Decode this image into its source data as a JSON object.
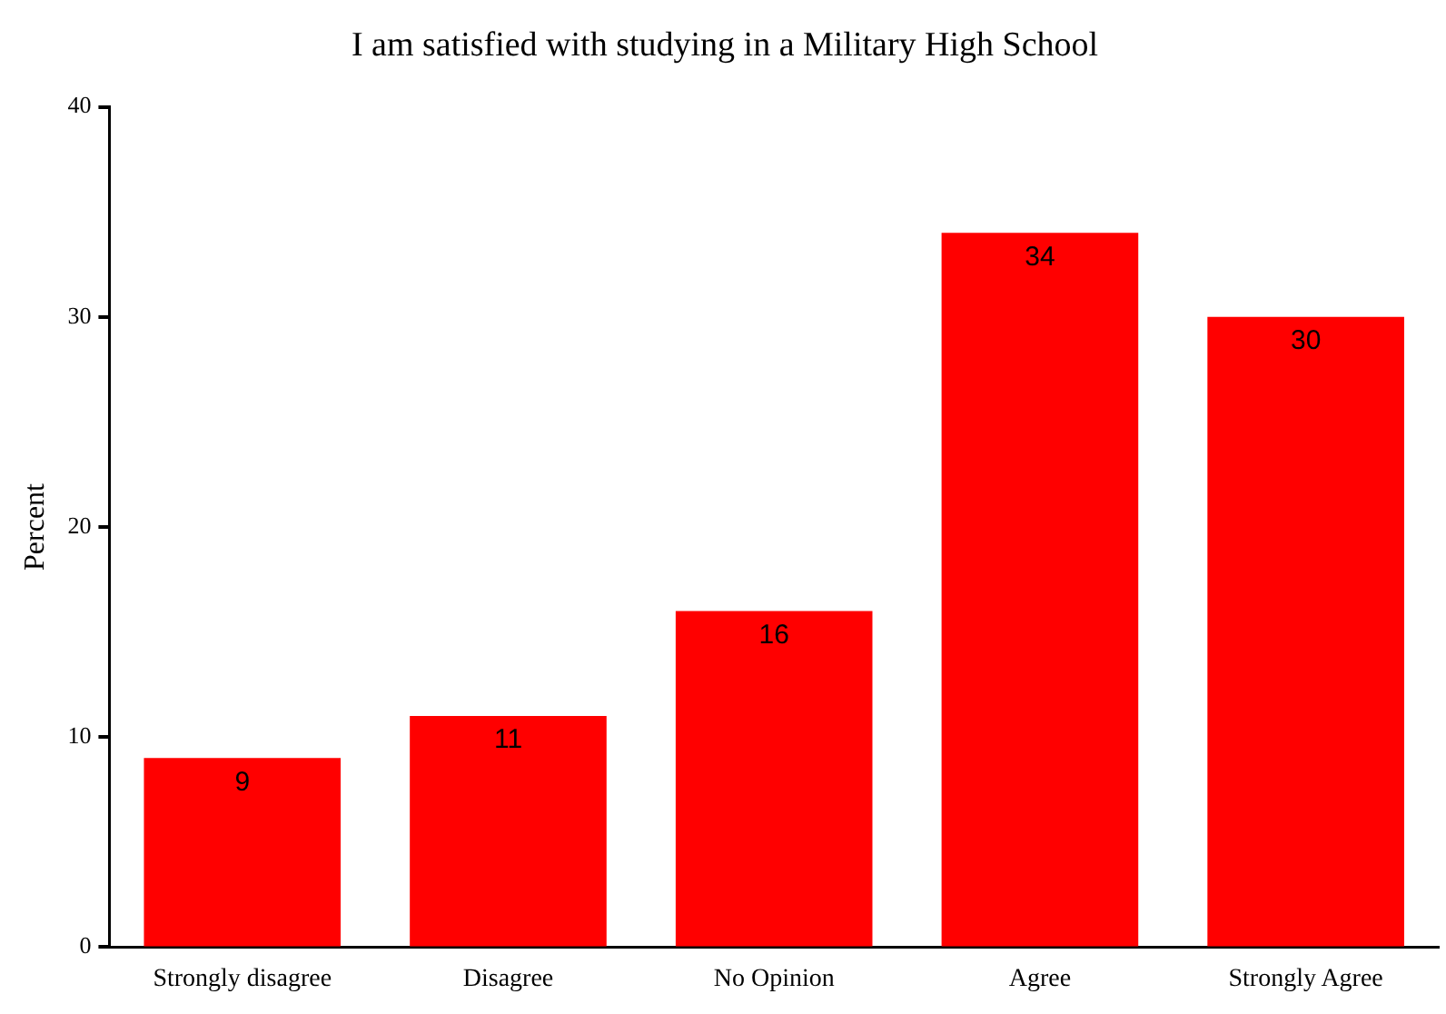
{
  "chart_data": {
    "type": "bar",
    "title": "I am satisfied with studying in a Military High School",
    "categories": [
      "Strongly disagree",
      "Disagree",
      "No Opinion",
      "Agree",
      "Strongly Agree"
    ],
    "values": [
      9,
      11,
      16,
      34,
      30
    ],
    "color": "#ff0000",
    "ylabel": "Percent",
    "ylim": [
      0,
      40
    ],
    "yticks": [
      0,
      10,
      20,
      30,
      40
    ],
    "grid": false,
    "data_labels": true
  }
}
